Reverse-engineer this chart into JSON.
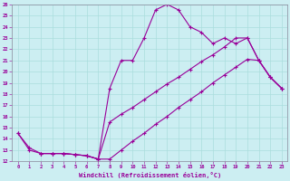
{
  "xlabel": "Windchill (Refroidissement éolien,°C)",
  "bg_color": "#cceef2",
  "line_color": "#990099",
  "grid_color": "#aadddd",
  "xlim": [
    -0.5,
    23.5
  ],
  "ylim": [
    12,
    26
  ],
  "xticks": [
    0,
    1,
    2,
    3,
    4,
    5,
    6,
    7,
    8,
    9,
    10,
    11,
    12,
    13,
    14,
    15,
    16,
    17,
    18,
    19,
    20,
    21,
    22,
    23
  ],
  "yticks": [
    12,
    13,
    14,
    15,
    16,
    17,
    18,
    19,
    20,
    21,
    22,
    23,
    24,
    25,
    26
  ],
  "line1_x": [
    0,
    1,
    2,
    3,
    4,
    5,
    6,
    7,
    8,
    9,
    10,
    11,
    12,
    13,
    14,
    15,
    16,
    17,
    18,
    19,
    20,
    21,
    22,
    23
  ],
  "line1_y": [
    14.5,
    13.0,
    12.7,
    12.7,
    12.7,
    12.6,
    12.5,
    12.2,
    18.5,
    21.0,
    21.0,
    23.0,
    25.5,
    26.0,
    25.5,
    24.0,
    23.5,
    22.5,
    23.0,
    22.5,
    23.0,
    21.0,
    19.5,
    18.5
  ],
  "line2_x": [
    0,
    1,
    2,
    3,
    4,
    5,
    6,
    7,
    8,
    9,
    10,
    11,
    12,
    13,
    14,
    15,
    16,
    17,
    18,
    19,
    20,
    21,
    22,
    23
  ],
  "line2_y": [
    14.5,
    13.2,
    12.7,
    12.7,
    12.7,
    12.6,
    12.5,
    12.2,
    12.2,
    13.0,
    13.8,
    14.5,
    15.3,
    16.0,
    16.8,
    17.5,
    18.2,
    19.0,
    19.7,
    20.4,
    21.1,
    21.0,
    19.5,
    18.5
  ],
  "line3_x": [
    2,
    3,
    4,
    5,
    6,
    7,
    8,
    9,
    10,
    11,
    12,
    13,
    14,
    15,
    16,
    17,
    18,
    19,
    20,
    21,
    22,
    23
  ],
  "line3_y": [
    12.7,
    12.7,
    12.7,
    12.6,
    12.5,
    12.2,
    15.5,
    16.2,
    16.8,
    17.5,
    18.2,
    18.9,
    19.5,
    20.2,
    20.9,
    21.5,
    22.2,
    23.0,
    23.0,
    21.0,
    19.5,
    18.5
  ]
}
